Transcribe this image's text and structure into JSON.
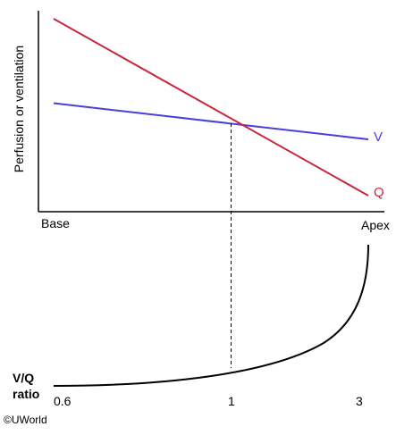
{
  "chart_data": [
    {
      "type": "line",
      "ylabel": "Perfusion or ventilation",
      "x_tick_labels": [
        "Base",
        "Apex"
      ],
      "xlim": [
        0,
        1
      ],
      "ylim": [
        0,
        1
      ],
      "series": [
        {
          "name": "V",
          "color": "#4B3FD9",
          "x": [
            0,
            1
          ],
          "y": [
            0.54,
            0.36
          ]
        },
        {
          "name": "Q",
          "color": "#C8283C",
          "x": [
            0,
            1
          ],
          "y": [
            0.96,
            0.08
          ]
        }
      ],
      "reference_line": {
        "x": 0.564,
        "style": "dashed"
      }
    },
    {
      "type": "line",
      "ylabel": "V/Q ratio",
      "x_tick_labels": [
        "0.6",
        "1",
        "3"
      ],
      "series": [
        {
          "name": "",
          "color": "#000000",
          "description_free": true
        }
      ]
    }
  ],
  "footer": {
    "copyright": "©UWorld"
  }
}
